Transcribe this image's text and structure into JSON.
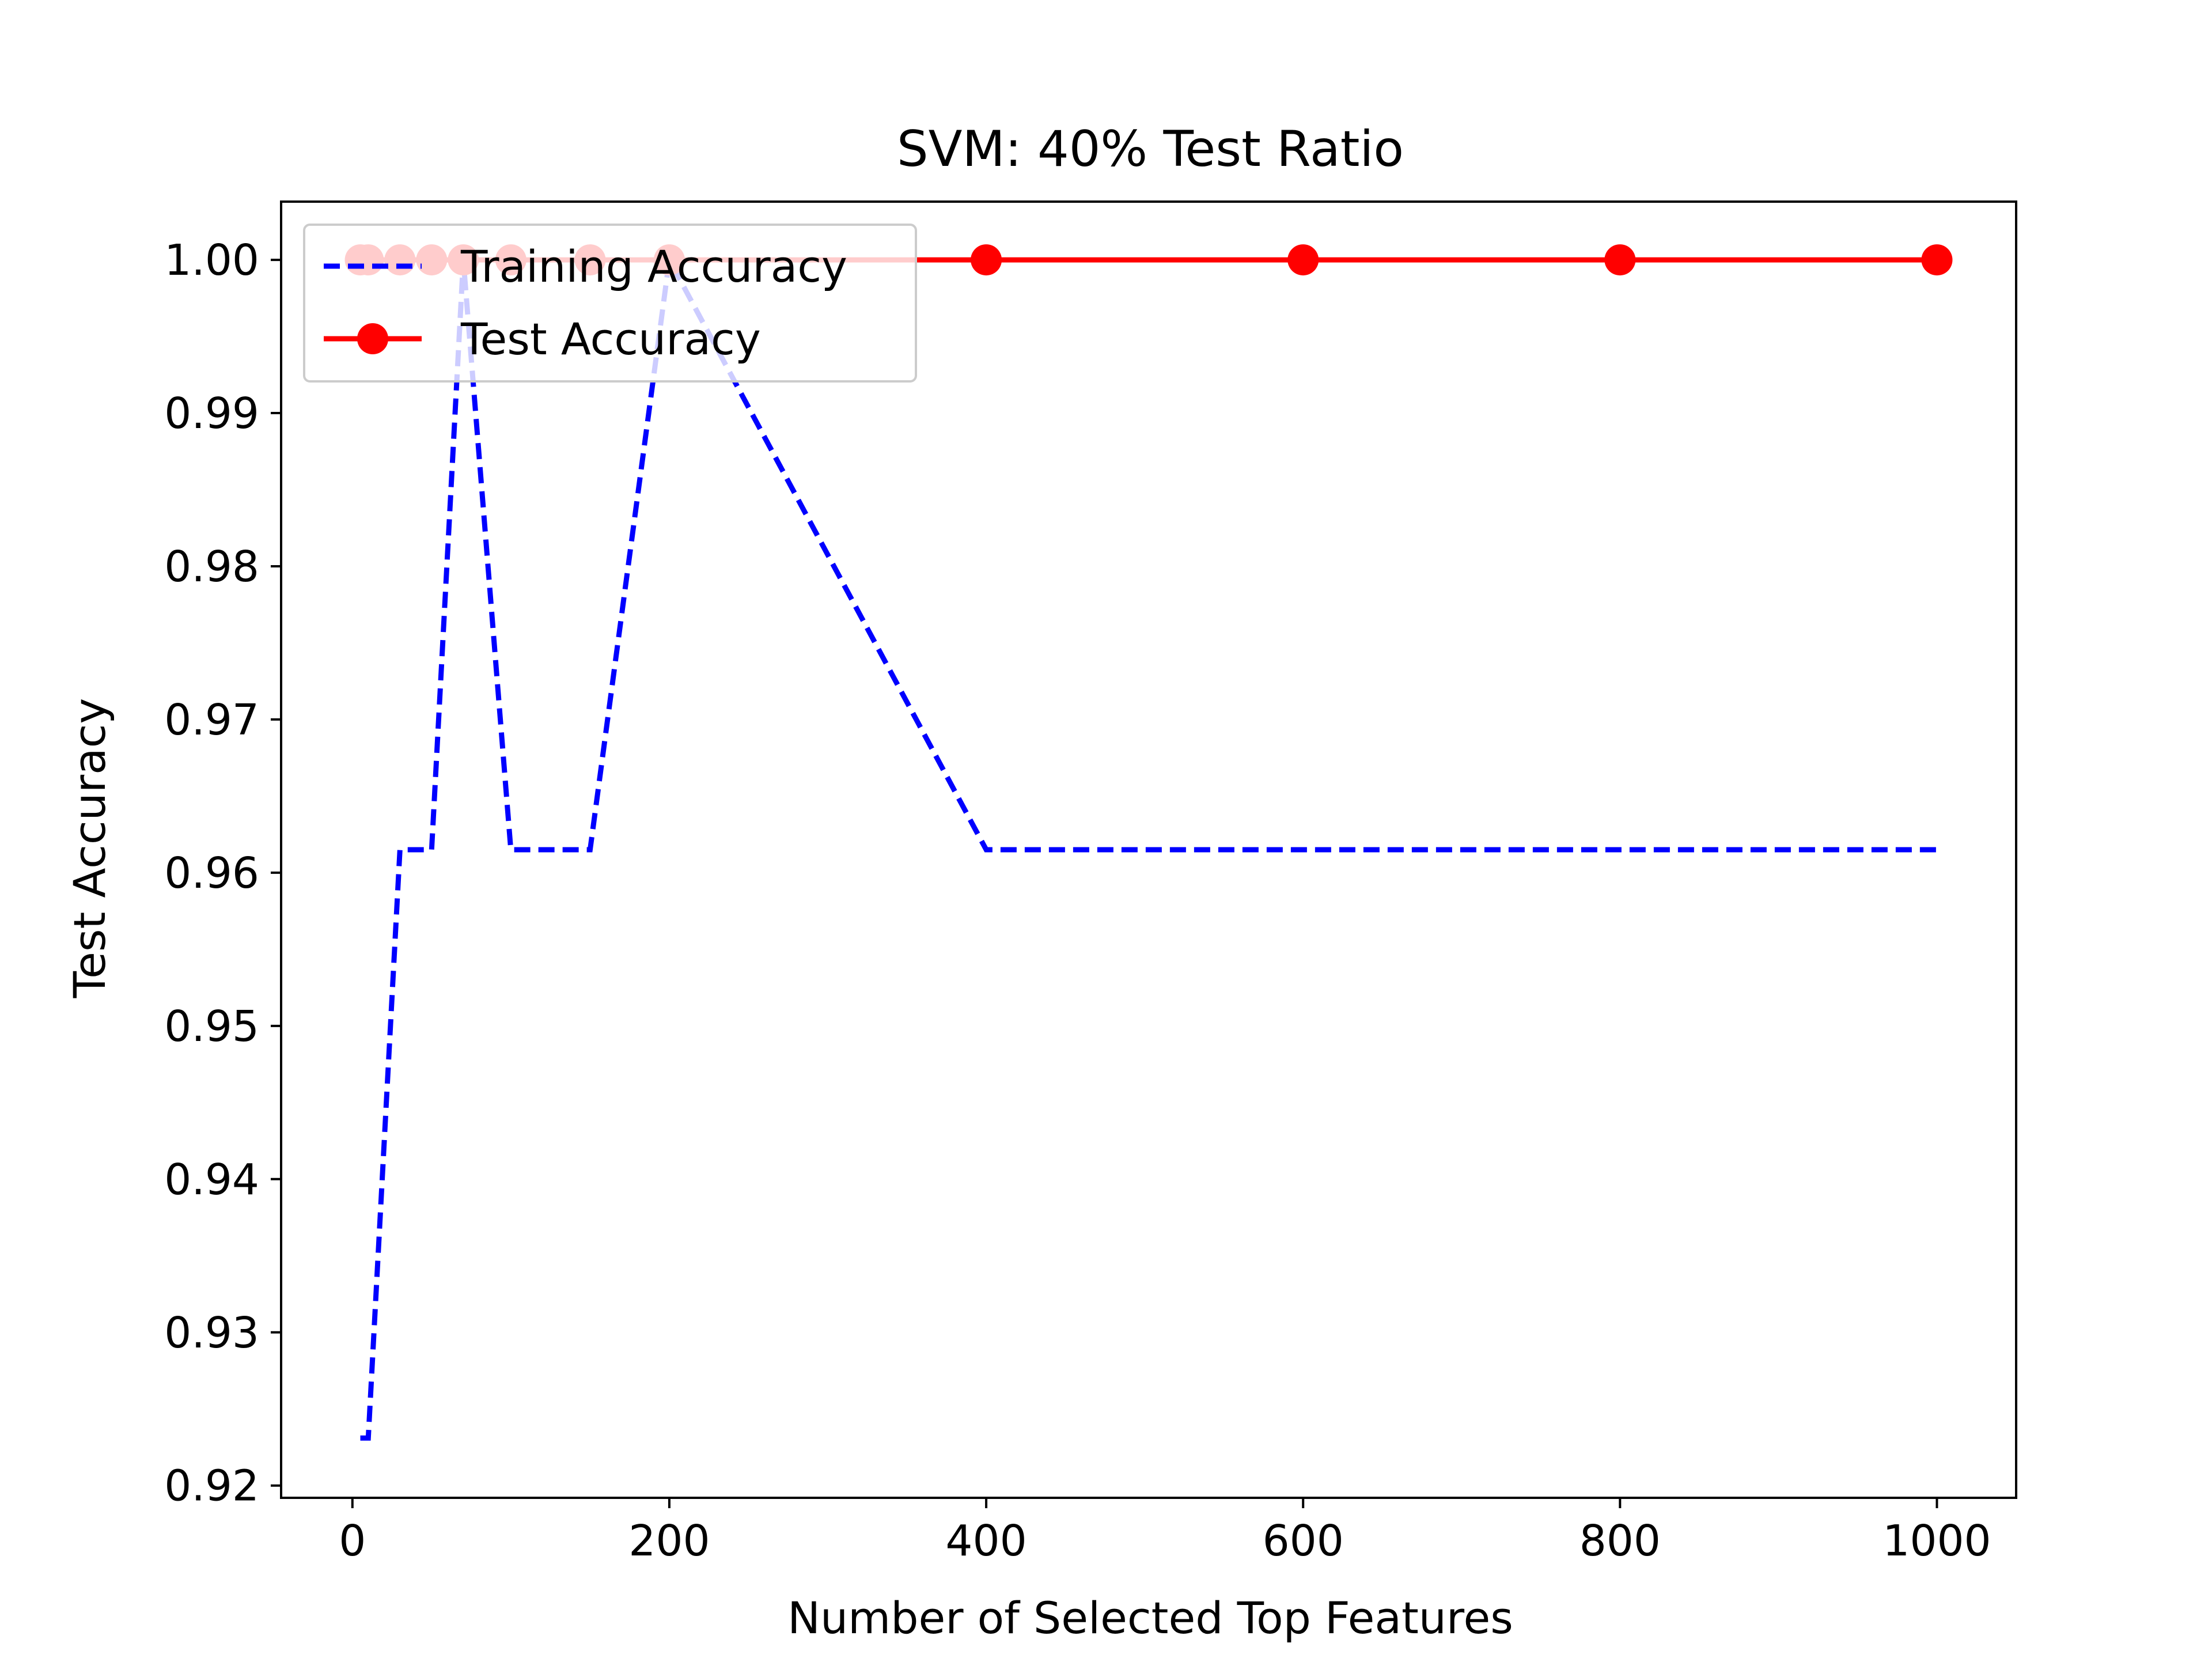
{
  "chart_data": {
    "type": "line",
    "title": "SVM: 40% Test Ratio",
    "xlabel": "Number of Selected Top Features",
    "ylabel": "Test Accuracy",
    "xlim": [
      -45,
      1050
    ],
    "ylim": [
      0.9192,
      1.0038
    ],
    "xticks": [
      0,
      200,
      400,
      600,
      800,
      1000
    ],
    "yticks": [
      0.92,
      0.93,
      0.94,
      0.95,
      0.96,
      0.97,
      0.98,
      0.99,
      1.0
    ],
    "xtick_labels": [
      "0",
      "200",
      "400",
      "600",
      "800",
      "1000"
    ],
    "ytick_labels": [
      "0.92",
      "0.93",
      "0.94",
      "0.95",
      "0.96",
      "0.97",
      "0.98",
      "0.99",
      "1.00"
    ],
    "grid": false,
    "legend_position": "upper-left",
    "series": [
      {
        "name": "Training Accuracy",
        "color": "#0000ff",
        "style": "dashed",
        "marker": "none",
        "x": [
          5,
          10,
          30,
          50,
          70,
          100,
          150,
          200,
          400,
          600,
          800,
          1000
        ],
        "y": [
          0.9231,
          0.9231,
          0.9615,
          0.9615,
          1.0,
          0.9615,
          0.9615,
          1.0,
          0.9615,
          0.9615,
          0.9615,
          0.9615
        ]
      },
      {
        "name": "Test Accuracy",
        "color": "#ff0000",
        "style": "solid",
        "marker": "circle",
        "x": [
          5,
          10,
          30,
          50,
          70,
          100,
          150,
          200,
          400,
          600,
          800,
          1000
        ],
        "y": [
          1.0,
          1.0,
          1.0,
          1.0,
          1.0,
          1.0,
          1.0,
          1.0,
          1.0,
          1.0,
          1.0,
          1.0
        ]
      }
    ]
  }
}
